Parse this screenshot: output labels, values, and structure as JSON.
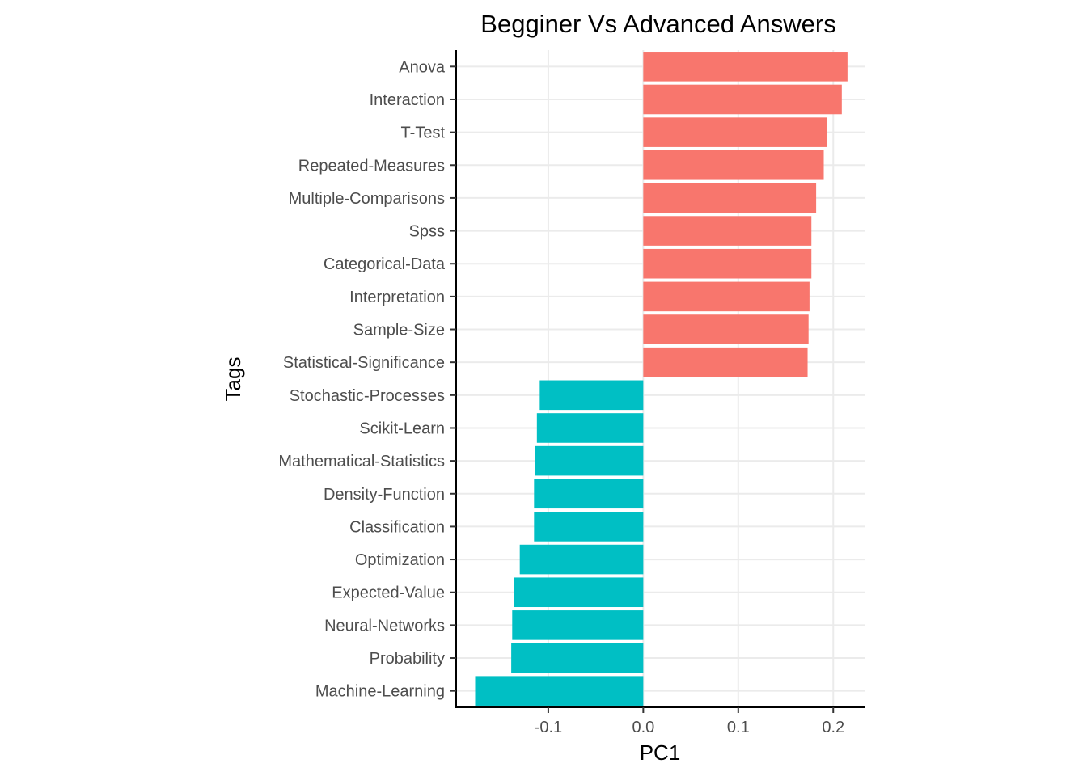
{
  "chart_data": {
    "type": "bar",
    "orientation": "horizontal",
    "title": "Begginer Vs Advanced Answers",
    "xlabel": "PC1",
    "ylabel": "Tags",
    "xlim": [
      -0.197,
      0.233
    ],
    "xticks": [
      -0.1,
      0.0,
      0.1,
      0.2
    ],
    "xtick_labels": [
      "-0.1",
      "0.0",
      "0.1",
      "0.2"
    ],
    "grid": true,
    "legend": "none",
    "colors": {
      "positive": "#F8766D",
      "negative": "#00BFC4"
    },
    "categories": [
      "Anova",
      "Interaction",
      "T-Test",
      "Repeated-Measures",
      "Multiple-Comparisons",
      "Spss",
      "Categorical-Data",
      "Interpretation",
      "Sample-Size",
      "Statistical-Significance",
      "Stochastic-Processes",
      "Scikit-Learn",
      "Mathematical-Statistics",
      "Density-Function",
      "Classification",
      "Optimization",
      "Expected-Value",
      "Neural-Networks",
      "Probability",
      "Machine-Learning"
    ],
    "values": [
      0.215,
      0.209,
      0.193,
      0.19,
      0.182,
      0.177,
      0.177,
      0.175,
      0.174,
      0.173,
      -0.109,
      -0.112,
      -0.114,
      -0.115,
      -0.115,
      -0.13,
      -0.136,
      -0.138,
      -0.139,
      -0.177
    ]
  }
}
